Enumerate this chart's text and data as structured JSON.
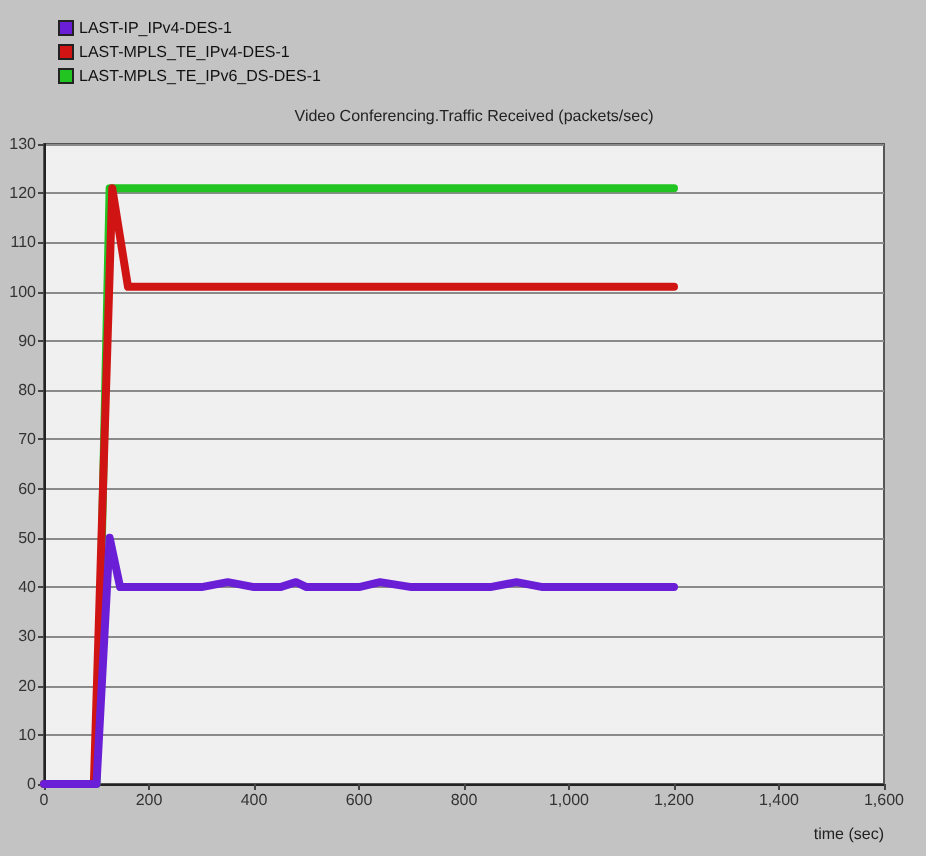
{
  "chart_data": {
    "type": "line",
    "title": "Video Conferencing.Traffic Received (packets/sec)",
    "xlabel": "time (sec)",
    "series": [
      {
        "name": "LAST-IP_IPv4-DES-1",
        "color": "#6a1fd6",
        "x": [
          0,
          100,
          125,
          145,
          200,
          250,
          300,
          350,
          400,
          450,
          480,
          500,
          550,
          600,
          640,
          700,
          750,
          800,
          850,
          900,
          950,
          1000,
          1050,
          1100,
          1150,
          1200
        ],
        "values": [
          0,
          0,
          50,
          40,
          40,
          40,
          40,
          41,
          40,
          40,
          41,
          40,
          40,
          40,
          41,
          40,
          40,
          40,
          40,
          41,
          40,
          40,
          40,
          40,
          40,
          40
        ]
      },
      {
        "name": "LAST-MPLS_TE_IPv4-DES-1",
        "color": "#d01414",
        "x": [
          0,
          95,
          130,
          160,
          1200
        ],
        "values": [
          0,
          0,
          121,
          101,
          101
        ]
      },
      {
        "name": "LAST-MPLS_TE_IPv6_DS-DES-1",
        "color": "#22c422",
        "x": [
          0,
          100,
          125,
          1200
        ],
        "values": [
          0,
          0,
          121,
          121
        ]
      }
    ],
    "xlim": [
      0,
      1600
    ],
    "xticks": [
      0,
      200,
      400,
      600,
      800,
      {
        "value": 1000,
        "label": "1,000"
      },
      {
        "value": 1200,
        "label": "1,200"
      },
      {
        "value": 1400,
        "label": "1,400"
      },
      {
        "value": 1600,
        "label": "1,600"
      }
    ],
    "ylim": [
      0,
      130
    ],
    "yticks": [
      0,
      10,
      20,
      30,
      40,
      50,
      60,
      70,
      80,
      90,
      100,
      110,
      120,
      130
    ],
    "grid": "y",
    "legend": "top left",
    "line_style": "solid"
  }
}
